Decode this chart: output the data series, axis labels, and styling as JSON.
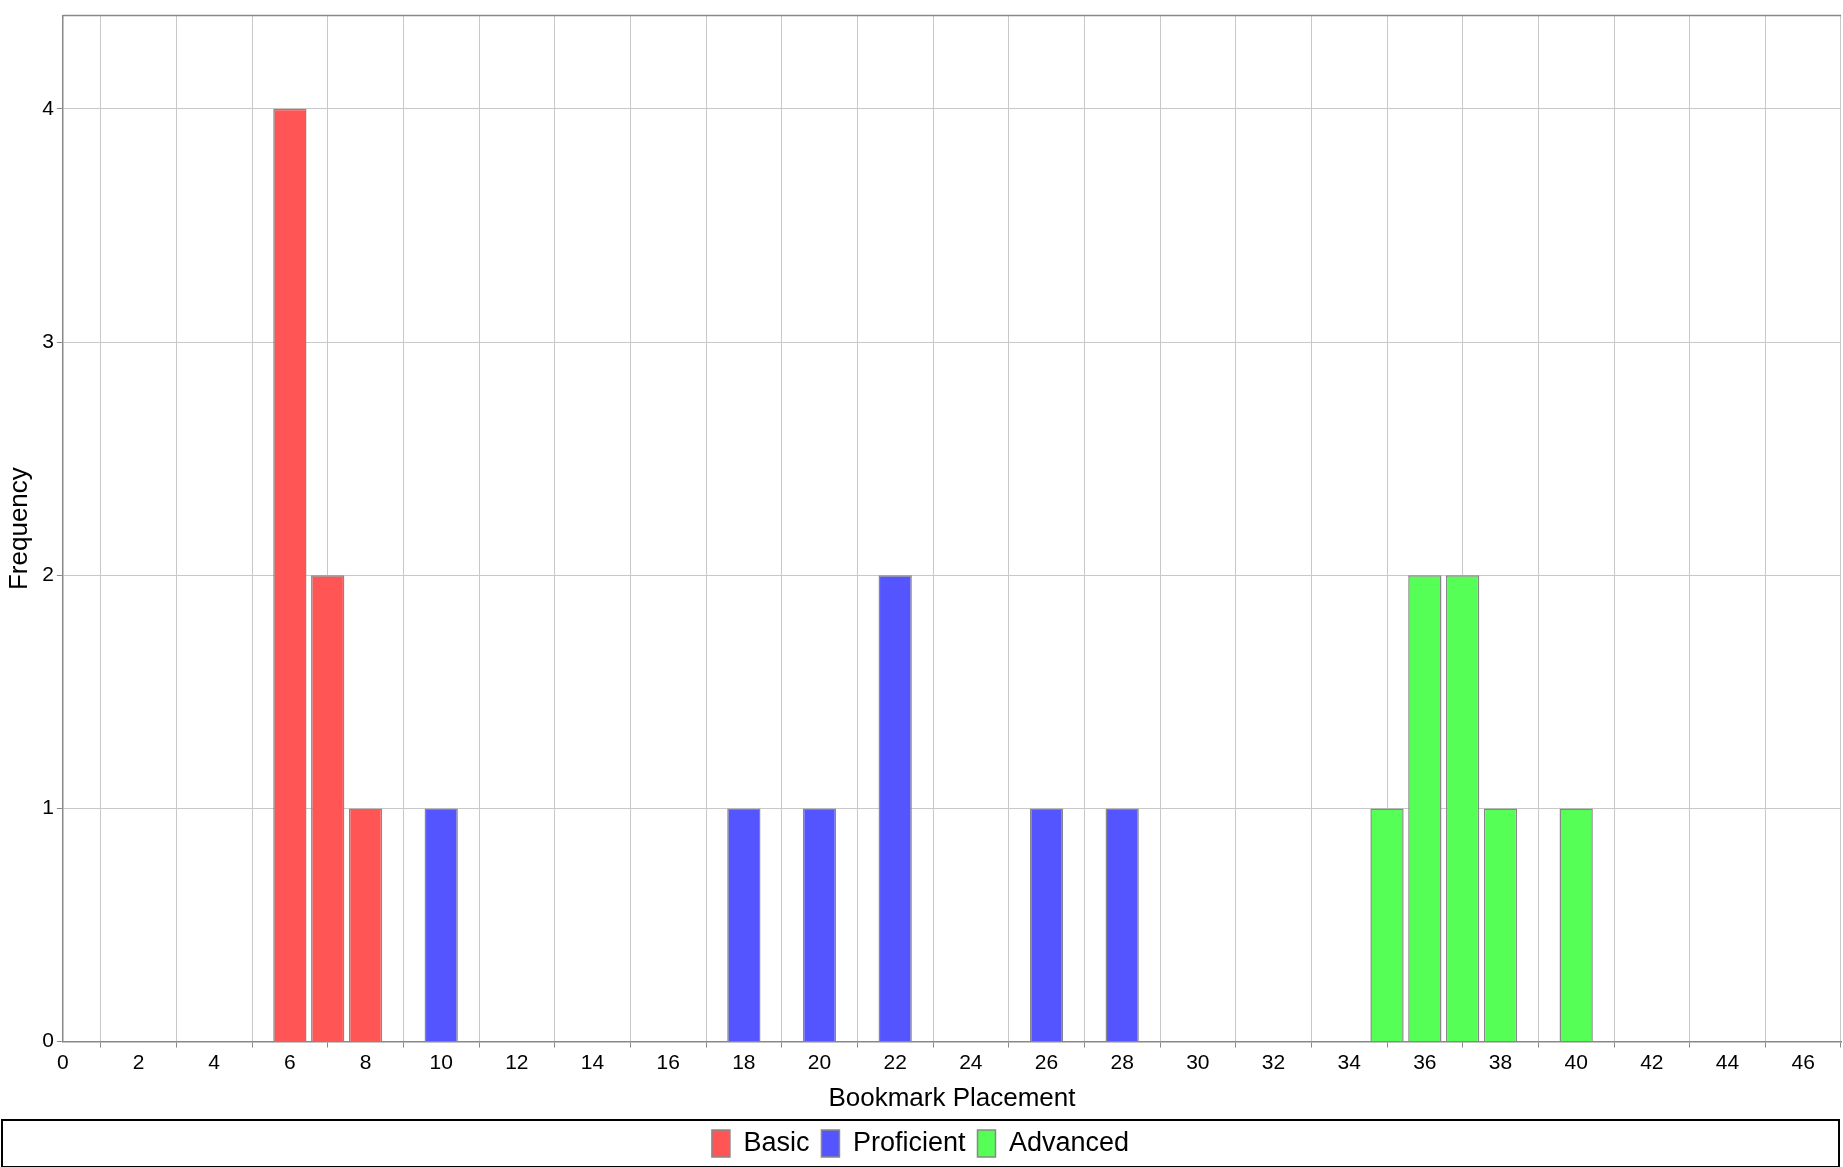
{
  "chart_data": {
    "type": "bar",
    "xlabel": "Bookmark Placement",
    "ylabel": "Frequency",
    "xlim": [
      0,
      47
    ],
    "xticks": [
      0,
      2,
      4,
      6,
      8,
      10,
      12,
      14,
      16,
      18,
      20,
      22,
      24,
      26,
      28,
      30,
      32,
      34,
      36,
      38,
      40,
      42,
      44,
      46
    ],
    "ylim": [
      0,
      4.4
    ],
    "yticks": [
      0,
      1,
      2,
      3,
      4
    ],
    "grid": true,
    "legend": "bottom",
    "series": [
      {
        "name": "Basic",
        "color": "#ff5555",
        "x": [
          6,
          7,
          8
        ],
        "values": [
          4,
          2,
          1
        ]
      },
      {
        "name": "Proficient",
        "color": "#5555ff",
        "x": [
          10,
          18,
          20,
          22,
          26,
          28
        ],
        "values": [
          1,
          1,
          1,
          2,
          1,
          1
        ]
      },
      {
        "name": "Advanced",
        "color": "#55ff55",
        "x": [
          35,
          36,
          37,
          38,
          40
        ],
        "values": [
          1,
          2,
          2,
          1,
          1
        ]
      }
    ]
  }
}
